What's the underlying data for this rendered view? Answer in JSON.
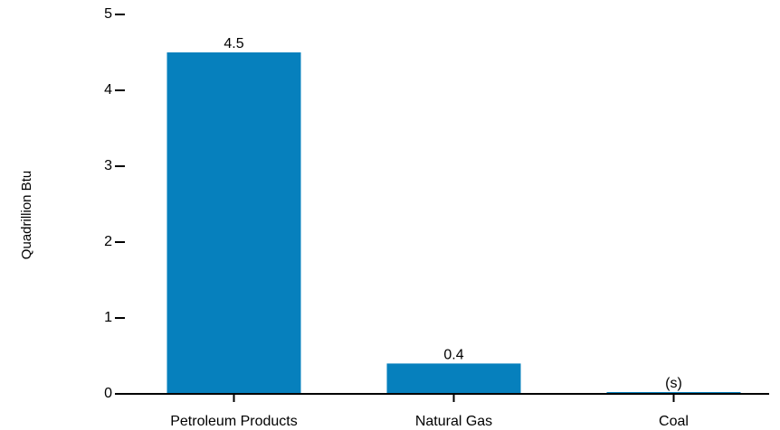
{
  "chart_data": {
    "type": "bar",
    "categories": [
      "Petroleum Products",
      "Natural Gas",
      "Coal"
    ],
    "values": [
      4.5,
      0.4,
      0.01
    ],
    "data_labels": [
      "4.5",
      "0.4",
      "(s)"
    ],
    "title": "",
    "xlabel": "",
    "ylabel": "Quadrillion Btu",
    "ylim": [
      0,
      5
    ],
    "yticks": [
      0,
      1,
      2,
      3,
      4,
      5
    ],
    "ytick_labels": [
      "0",
      "1",
      "2",
      "3",
      "4",
      "5"
    ],
    "grid": false,
    "legend": "none",
    "bar_color": "#0680bd",
    "axis_color": "#000000"
  }
}
